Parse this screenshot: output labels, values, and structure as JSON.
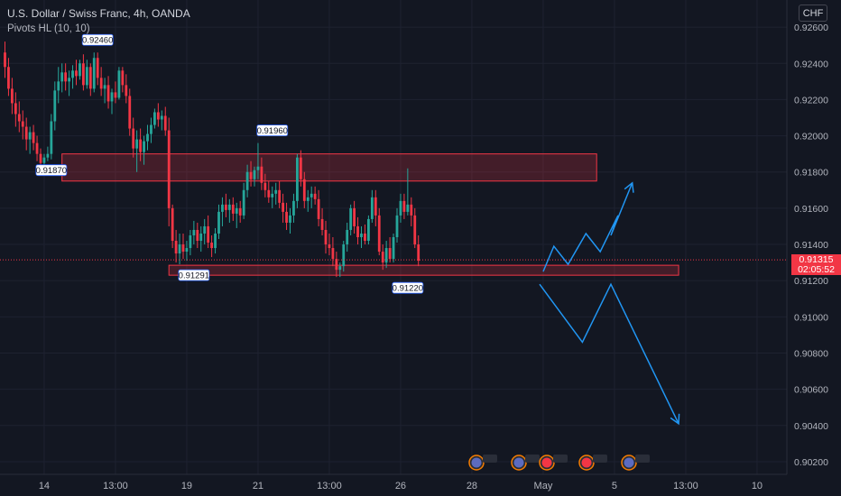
{
  "header": {
    "title": "U.S. Dollar / Swiss Franc, 4h, OANDA",
    "indicator": "Pivots HL (10, 10)"
  },
  "currency_button": "CHF",
  "last_price": {
    "value": "0.91315",
    "countdown": "02:05:52"
  },
  "colors": {
    "background": "#131722",
    "grid": "#1e2230",
    "bull": "#26a69a",
    "bear": "#f23645",
    "zone_fill": "rgba(242,54,69,0.22)",
    "zone_stroke": "#f23645",
    "projection": "#2196f3",
    "axis_text": "#b2b5be"
  },
  "chart_data": {
    "type": "candlestick",
    "y_axis": {
      "ticks": [
        "0.92600",
        "0.92400",
        "0.92200",
        "0.92000",
        "0.91800",
        "0.91600",
        "0.91400",
        "0.91200",
        "0.91000",
        "0.90800",
        "0.90600",
        "0.90400",
        "0.90200"
      ],
      "tick_values": [
        0.926,
        0.924,
        0.922,
        0.92,
        0.918,
        0.916,
        0.914,
        0.912,
        0.91,
        0.908,
        0.906,
        0.904,
        0.902
      ],
      "range": [
        0.9013,
        0.9275
      ]
    },
    "x_axis": {
      "ticks": [
        "14",
        "13:00",
        "19",
        "21",
        "13:00",
        "26",
        "28",
        "May",
        "5",
        "13:00",
        "10"
      ],
      "tick_bar_index": [
        11,
        31,
        51,
        71,
        91,
        111,
        131,
        151,
        171,
        191,
        211
      ]
    },
    "pivot_labels": [
      {
        "text": "0.92460",
        "bar": 26,
        "price": 0.9246,
        "kind": "high"
      },
      {
        "text": "0.91870",
        "bar": 13,
        "price": 0.9187,
        "kind": "low"
      },
      {
        "text": "0.91960",
        "bar": 75,
        "price": 0.9196,
        "kind": "high"
      },
      {
        "text": "0.91291",
        "bar": 53,
        "price": 0.9129,
        "kind": "low"
      },
      {
        "text": "0.91220",
        "bar": 113,
        "price": 0.9122,
        "kind": "low"
      }
    ],
    "zones": [
      {
        "name": "resistance",
        "bar_from": 16,
        "bar_to": 166,
        "price_top": 0.919,
        "price_bottom": 0.9175
      },
      {
        "name": "support",
        "bar_from": 46,
        "bar_to": 189,
        "price_top": 0.91285,
        "price_bottom": 0.9123
      }
    ],
    "last_price_line": 0.91315,
    "projections": [
      {
        "name": "bullish-path",
        "points": [
          [
            151,
            0.9125
          ],
          [
            154,
            0.9139
          ],
          [
            158,
            0.9129
          ],
          [
            163,
            0.9146
          ],
          [
            167,
            0.9136
          ],
          [
            172,
            0.9156
          ],
          [
            170,
            0.9145
          ],
          [
            176,
            0.9174
          ]
        ]
      },
      {
        "name": "bearish-path",
        "points": [
          [
            150,
            0.9118
          ],
          [
            162,
            0.9086
          ],
          [
            170,
            0.9118
          ],
          [
            189,
            0.9041
          ]
        ]
      }
    ],
    "candles": [
      [
        0.9246,
        0.9252,
        0.9232,
        0.9238
      ],
      [
        0.9238,
        0.9243,
        0.9222,
        0.9226
      ],
      [
        0.9226,
        0.9232,
        0.9212,
        0.9218
      ],
      [
        0.9218,
        0.9224,
        0.9205,
        0.9212
      ],
      [
        0.9212,
        0.9219,
        0.9202,
        0.9208
      ],
      [
        0.9208,
        0.9214,
        0.9198,
        0.9205
      ],
      [
        0.9205,
        0.921,
        0.9192,
        0.9198
      ],
      [
        0.9198,
        0.9205,
        0.919,
        0.9202
      ],
      [
        0.9202,
        0.9206,
        0.9192,
        0.9196
      ],
      [
        0.9196,
        0.92,
        0.9186,
        0.919
      ],
      [
        0.919,
        0.9193,
        0.918,
        0.9185
      ],
      [
        0.9185,
        0.919,
        0.9181,
        0.9188
      ],
      [
        0.9188,
        0.9194,
        0.9186,
        0.919
      ],
      [
        0.919,
        0.9212,
        0.9187,
        0.9208
      ],
      [
        0.9208,
        0.923,
        0.9203,
        0.9225
      ],
      [
        0.9225,
        0.9238,
        0.9218,
        0.923
      ],
      [
        0.923,
        0.924,
        0.9224,
        0.9235
      ],
      [
        0.9235,
        0.924,
        0.9225,
        0.923
      ],
      [
        0.923,
        0.9236,
        0.9222,
        0.9232
      ],
      [
        0.9232,
        0.9239,
        0.9226,
        0.9236
      ],
      [
        0.9236,
        0.9242,
        0.9228,
        0.9233
      ],
      [
        0.9233,
        0.9242,
        0.9231,
        0.924
      ],
      [
        0.924,
        0.9245,
        0.9225,
        0.9228
      ],
      [
        0.9228,
        0.9242,
        0.9226,
        0.9238
      ],
      [
        0.9238,
        0.924,
        0.9222,
        0.9226
      ],
      [
        0.9226,
        0.9246,
        0.9224,
        0.9243
      ],
      [
        0.9243,
        0.9246,
        0.9228,
        0.9232
      ],
      [
        0.9232,
        0.9238,
        0.9222,
        0.9226
      ],
      [
        0.9226,
        0.9232,
        0.9218,
        0.9228
      ],
      [
        0.9228,
        0.9233,
        0.9215,
        0.9219
      ],
      [
        0.9219,
        0.9226,
        0.9212,
        0.9224
      ],
      [
        0.9224,
        0.923,
        0.9218,
        0.9221
      ],
      [
        0.9221,
        0.9238,
        0.922,
        0.9236
      ],
      [
        0.9236,
        0.9238,
        0.9224,
        0.9228
      ],
      [
        0.9228,
        0.9234,
        0.9218,
        0.9222
      ],
      [
        0.9222,
        0.9226,
        0.92,
        0.9204
      ],
      [
        0.9204,
        0.921,
        0.9188,
        0.9193
      ],
      [
        0.9193,
        0.9203,
        0.918,
        0.9198
      ],
      [
        0.9198,
        0.9204,
        0.9186,
        0.9191
      ],
      [
        0.9191,
        0.92,
        0.9184,
        0.9197
      ],
      [
        0.9197,
        0.9206,
        0.9192,
        0.9201
      ],
      [
        0.9201,
        0.921,
        0.9196,
        0.9206
      ],
      [
        0.9206,
        0.9215,
        0.9204,
        0.9213
      ],
      [
        0.9213,
        0.9218,
        0.9205,
        0.9209
      ],
      [
        0.9209,
        0.9214,
        0.9203,
        0.9211
      ],
      [
        0.9211,
        0.9216,
        0.92,
        0.9203
      ],
      [
        0.9203,
        0.921,
        0.915,
        0.916
      ],
      [
        0.916,
        0.9162,
        0.9138,
        0.9142
      ],
      [
        0.9142,
        0.9148,
        0.913,
        0.9135
      ],
      [
        0.9135,
        0.9146,
        0.9129,
        0.914
      ],
      [
        0.914,
        0.9146,
        0.9132,
        0.9136
      ],
      [
        0.9136,
        0.9142,
        0.9131,
        0.9138
      ],
      [
        0.9138,
        0.9148,
        0.9134,
        0.9145
      ],
      [
        0.9145,
        0.9153,
        0.914,
        0.9148
      ],
      [
        0.9148,
        0.9152,
        0.9138,
        0.9142
      ],
      [
        0.9142,
        0.915,
        0.9136,
        0.9146
      ],
      [
        0.9146,
        0.9154,
        0.914,
        0.915
      ],
      [
        0.915,
        0.9156,
        0.9138,
        0.9141
      ],
      [
        0.9141,
        0.9145,
        0.9133,
        0.9138
      ],
      [
        0.9138,
        0.9149,
        0.9135,
        0.9146
      ],
      [
        0.9146,
        0.9162,
        0.9143,
        0.9158
      ],
      [
        0.9158,
        0.9166,
        0.915,
        0.9162
      ],
      [
        0.9162,
        0.9168,
        0.9155,
        0.9159
      ],
      [
        0.9159,
        0.9165,
        0.9152,
        0.9162
      ],
      [
        0.9162,
        0.9166,
        0.9153,
        0.9157
      ],
      [
        0.9157,
        0.9163,
        0.9149,
        0.916
      ],
      [
        0.916,
        0.9164,
        0.9152,
        0.9156
      ],
      [
        0.9156,
        0.9174,
        0.9154,
        0.917
      ],
      [
        0.917,
        0.9184,
        0.9166,
        0.918
      ],
      [
        0.918,
        0.9186,
        0.9172,
        0.9176
      ],
      [
        0.9176,
        0.9183,
        0.9172,
        0.9181
      ],
      [
        0.9181,
        0.9196,
        0.9176,
        0.9183
      ],
      [
        0.9183,
        0.9188,
        0.917,
        0.9174
      ],
      [
        0.9174,
        0.9179,
        0.9166,
        0.917
      ],
      [
        0.917,
        0.9175,
        0.9163,
        0.9166
      ],
      [
        0.9166,
        0.9172,
        0.916,
        0.9168
      ],
      [
        0.9168,
        0.9174,
        0.9162,
        0.917
      ],
      [
        0.917,
        0.9175,
        0.916,
        0.9163
      ],
      [
        0.9163,
        0.9168,
        0.9152,
        0.9158
      ],
      [
        0.9158,
        0.9163,
        0.9148,
        0.9152
      ],
      [
        0.9152,
        0.916,
        0.9146,
        0.9156
      ],
      [
        0.9156,
        0.9168,
        0.9152,
        0.9164
      ],
      [
        0.9164,
        0.919,
        0.916,
        0.9188
      ],
      [
        0.9188,
        0.9192,
        0.9172,
        0.9176
      ],
      [
        0.9176,
        0.918,
        0.916,
        0.9164
      ],
      [
        0.9164,
        0.917,
        0.9158,
        0.9166
      ],
      [
        0.9166,
        0.9172,
        0.916,
        0.9168
      ],
      [
        0.9168,
        0.9172,
        0.9162,
        0.9165
      ],
      [
        0.9165,
        0.917,
        0.915,
        0.9154
      ],
      [
        0.9154,
        0.916,
        0.9145,
        0.9148
      ],
      [
        0.9148,
        0.9153,
        0.9135,
        0.914
      ],
      [
        0.914,
        0.9146,
        0.9134,
        0.9138
      ],
      [
        0.9138,
        0.9144,
        0.9128,
        0.9132
      ],
      [
        0.9132,
        0.9136,
        0.9122,
        0.9126
      ],
      [
        0.9126,
        0.913,
        0.9122,
        0.9128
      ],
      [
        0.9128,
        0.9142,
        0.9125,
        0.914
      ],
      [
        0.914,
        0.9152,
        0.9136,
        0.9148
      ],
      [
        0.9148,
        0.9162,
        0.9145,
        0.916
      ],
      [
        0.916,
        0.9164,
        0.9146,
        0.915
      ],
      [
        0.915,
        0.9155,
        0.914,
        0.9144
      ],
      [
        0.9144,
        0.915,
        0.9138,
        0.9146
      ],
      [
        0.9146,
        0.9151,
        0.914,
        0.9142
      ],
      [
        0.9142,
        0.9156,
        0.914,
        0.9154
      ],
      [
        0.9154,
        0.917,
        0.9152,
        0.9166
      ],
      [
        0.9166,
        0.917,
        0.915,
        0.9156
      ],
      [
        0.9156,
        0.916,
        0.9134,
        0.9136
      ],
      [
        0.9136,
        0.914,
        0.9126,
        0.913
      ],
      [
        0.913,
        0.9142,
        0.9127,
        0.9138
      ],
      [
        0.9138,
        0.9144,
        0.913,
        0.9132
      ],
      [
        0.9132,
        0.9146,
        0.913,
        0.9144
      ],
      [
        0.9144,
        0.916,
        0.9141,
        0.9156
      ],
      [
        0.9156,
        0.9168,
        0.9152,
        0.9164
      ],
      [
        0.9164,
        0.9168,
        0.9154,
        0.9158
      ],
      [
        0.9158,
        0.9182,
        0.9156,
        0.9162
      ],
      [
        0.9162,
        0.9166,
        0.915,
        0.9156
      ],
      [
        0.9156,
        0.916,
        0.9138,
        0.914
      ],
      [
        0.914,
        0.9145,
        0.9128,
        0.9131
      ]
    ]
  }
}
